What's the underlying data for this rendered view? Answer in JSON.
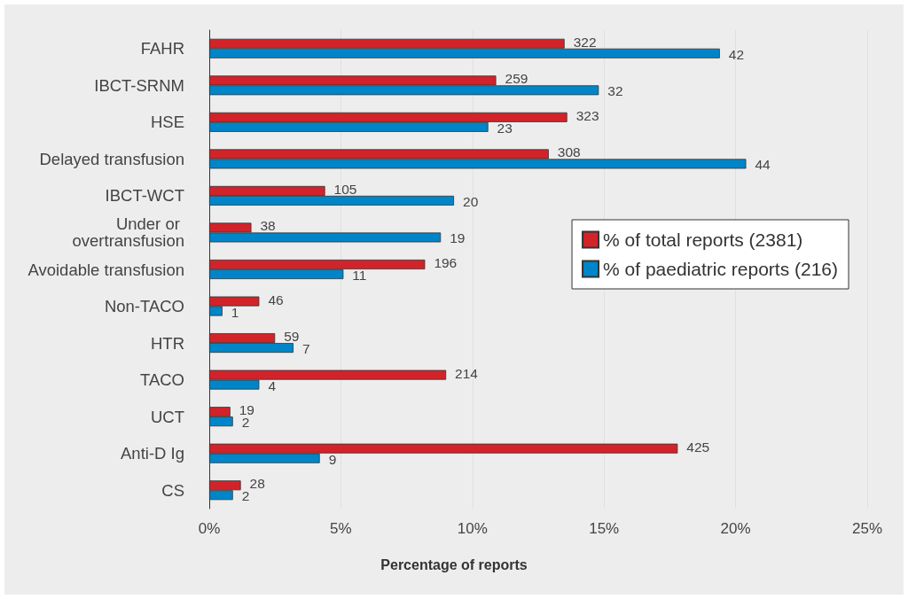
{
  "chart_data": {
    "type": "bar",
    "orientation": "horizontal",
    "categories": [
      "FAHR",
      "IBCT-SRNM",
      "HSE",
      "Delayed transfusion",
      "IBCT-WCT",
      "Under or overtransfusion",
      "Avoidable transfusion",
      "Non-TACO",
      "HTR",
      "TACO",
      "UCT",
      "Anti-D Ig",
      "CS"
    ],
    "series": [
      {
        "name": "% of total reports (2381)",
        "color": "#d2232a",
        "values": [
          13.5,
          10.9,
          13.6,
          12.9,
          4.4,
          1.6,
          8.2,
          1.9,
          2.5,
          9.0,
          0.8,
          17.8,
          1.2
        ]
      },
      {
        "name": "% of paediatric reports (216)",
        "color": "#0085c8",
        "values": [
          19.4,
          14.8,
          10.6,
          20.4,
          9.3,
          8.8,
          5.1,
          0.5,
          3.2,
          1.9,
          0.9,
          4.2,
          0.9
        ]
      }
    ],
    "annotations": [
      {
        "text": "322",
        "x": 13.5,
        "y": "FAHR"
      },
      {
        "text": "42",
        "x": 19.4,
        "y": "FAHR"
      },
      {
        "text": "259",
        "x": 10.9,
        "y": "IBCT-SRNM"
      },
      {
        "text": "32",
        "x": 14.8,
        "y": "IBCT-SRNM"
      },
      {
        "text": "323",
        "x": 13.6,
        "y": "HSE"
      },
      {
        "text": "23",
        "x": 10.6,
        "y": "HSE"
      },
      {
        "text": "308",
        "x": 12.9,
        "y": "Delayed transfusion"
      },
      {
        "text": "44",
        "x": 20.4,
        "y": "Delayed transfusion"
      },
      {
        "text": "105",
        "x": 4.4,
        "y": "IBCT-WCT"
      },
      {
        "text": "20",
        "x": 9.3,
        "y": "IBCT-WCT"
      },
      {
        "text": "38",
        "x": 1.6,
        "y": "Under or overtransfusion"
      },
      {
        "text": "19",
        "x": 8.8,
        "y": "Under or overtransfusion"
      },
      {
        "text": "196",
        "x": 8.2,
        "y": "Avoidable transfusion"
      },
      {
        "text": "11",
        "x": 5.1,
        "y": "Avoidable transfusion"
      },
      {
        "text": "46",
        "x": 1.9,
        "y": "Non-TACO"
      },
      {
        "text": "1",
        "x": 0.5,
        "y": "Non-TACO"
      },
      {
        "text": "59",
        "x": 2.5,
        "y": "HTR"
      },
      {
        "text": "7",
        "x": 3.2,
        "y": "HTR"
      },
      {
        "text": "214",
        "x": 9.0,
        "y": "TACO"
      },
      {
        "text": "4",
        "x": 1.9,
        "y": "TACO"
      },
      {
        "text": "19",
        "x": 0.8,
        "y": "UCT"
      },
      {
        "text": "2",
        "x": 0.9,
        "y": "UCT"
      },
      {
        "text": "425",
        "x": 17.8,
        "y": "Anti-D Ig"
      },
      {
        "text": "9",
        "x": 4.2,
        "y": "Anti-D Ig"
      },
      {
        "text": "28",
        "x": 1.2,
        "y": "CS"
      },
      {
        "text": "2",
        "x": 0.9,
        "y": "CS"
      }
    ],
    "xlim": [
      0,
      25
    ],
    "xticks": [
      {
        "value": 0,
        "label": "0%"
      },
      {
        "value": 5,
        "label": "5%"
      },
      {
        "value": 10,
        "label": "10%"
      },
      {
        "value": 15,
        "label": "15%"
      },
      {
        "value": 20,
        "label": "20%"
      },
      {
        "value": 25,
        "label": "25%"
      }
    ],
    "xlabel": "Percentage of reports",
    "legend": "right",
    "grid": "x"
  }
}
